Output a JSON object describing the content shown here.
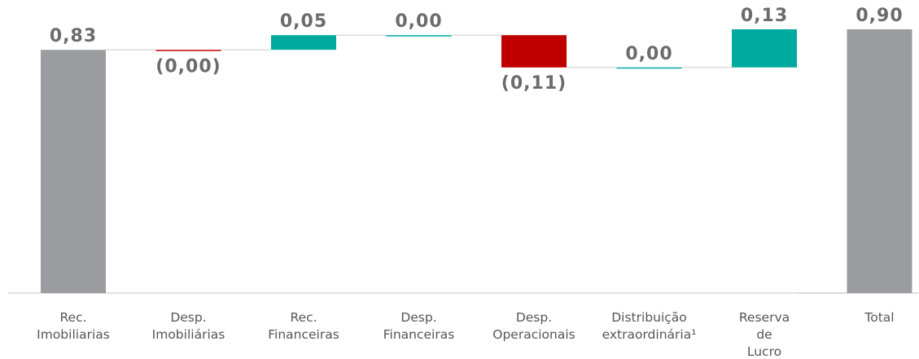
{
  "chart_data": {
    "type": "waterfall",
    "categories": [
      [
        "Rec.",
        "Imobiliarias"
      ],
      [
        "Desp.",
        "Imobiliárias"
      ],
      [
        "Rec.",
        "Financeiras"
      ],
      [
        "Desp.",
        "Financeiras"
      ],
      [
        "Desp.",
        "Operacionais"
      ],
      [
        "Distribuição",
        "extraordinária¹"
      ],
      [
        "Reserva",
        "de",
        "Lucro"
      ],
      [
        "Total"
      ]
    ],
    "values": [
      0.83,
      0.0,
      0.05,
      0.0,
      -0.11,
      0.0,
      0.13,
      0.9
    ],
    "value_labels": [
      "0,83",
      "(0,00)",
      "0,05",
      "0,00",
      "(0,11)",
      "0,00",
      "0,13",
      "0,90"
    ],
    "measures": [
      "absolute",
      "relative",
      "relative",
      "relative",
      "relative",
      "relative",
      "relative",
      "total"
    ],
    "colors": [
      "#9b9c9f",
      "#c00000",
      "#00a99d",
      "#00a99d",
      "#c00000",
      "#00a99d",
      "#00a99d",
      "#9b9c9f"
    ],
    "ylim": [
      0,
      0.9
    ]
  }
}
